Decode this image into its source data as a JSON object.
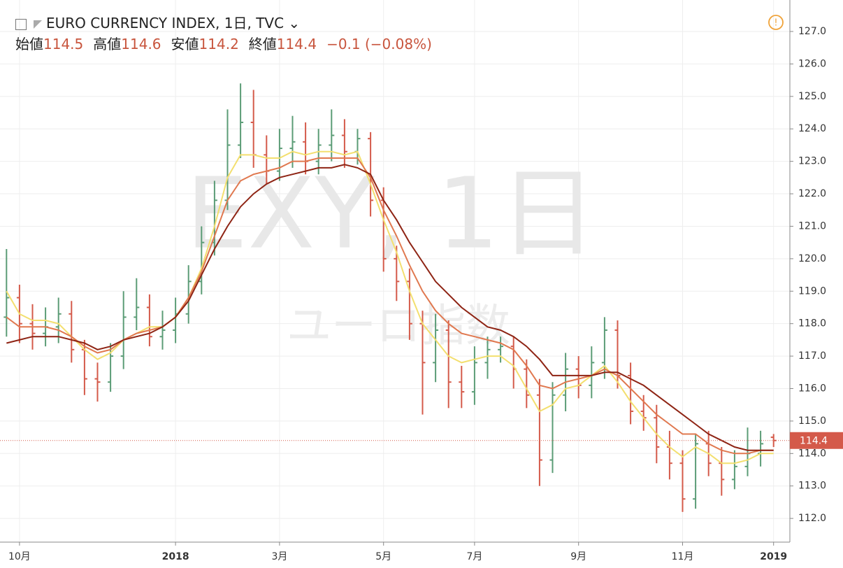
{
  "chart_data": {
    "type": "ohlc",
    "title": "EURO CURRENCY INDEX, 1日, TVC",
    "watermark": "EXY, 1日",
    "watermark_sub": "ユーロ指数",
    "legend_values": [
      {
        "label": "始値",
        "value": 114.5
      },
      {
        "label": "高値",
        "value": 114.6
      },
      {
        "label": "安値",
        "value": 114.2
      },
      {
        "label": "終値",
        "value": 114.4
      }
    ],
    "change": "−0.1 (−0.08%)",
    "categories": [
      null,
      "10月",
      null,
      null,
      null,
      null,
      null,
      null,
      null,
      null,
      null,
      null,
      null,
      "2018",
      null,
      null,
      null,
      null,
      null,
      null,
      null,
      "3月",
      null,
      null,
      null,
      null,
      null,
      null,
      null,
      "5月",
      null,
      null,
      null,
      null,
      null,
      null,
      "7月",
      null,
      null,
      null,
      null,
      null,
      null,
      null,
      "9月",
      null,
      null,
      null,
      null,
      null,
      null,
      null,
      "11月",
      null,
      null,
      null,
      null,
      null,
      null,
      "2019"
    ],
    "up_color": "#5b9c76",
    "down_color": "#d45a4a",
    "ohlc": {
      "open": [
        118.2,
        118.8,
        118.0,
        117.7,
        117.9,
        118.3,
        117.2,
        116.3,
        116.2,
        117.0,
        118.2,
        118.5,
        117.6,
        117.8,
        118.3,
        119.3,
        120.5,
        121.8,
        123.5,
        124.2,
        123.2,
        122.7,
        123.4,
        123.6,
        123.0,
        123.5,
        123.8,
        123.3,
        123.7,
        121.8,
        120.0,
        119.3,
        118.0,
        116.8,
        117.8,
        116.2,
        115.9,
        116.8,
        117.2,
        117.3,
        116.6,
        115.8,
        113.8,
        115.8,
        116.6,
        116.1,
        116.8,
        117.8,
        116.4,
        115.3,
        115.1,
        114.2,
        113.7,
        112.6,
        114.3,
        113.7,
        113.2,
        113.6,
        114.0,
        114.5
      ],
      "high": [
        120.3,
        119.2,
        118.6,
        118.5,
        118.8,
        118.7,
        117.5,
        116.8,
        117.4,
        119.0,
        119.4,
        118.9,
        118.4,
        118.8,
        119.8,
        121.0,
        122.4,
        124.6,
        125.4,
        125.2,
        123.8,
        124.0,
        124.4,
        124.2,
        124.0,
        124.6,
        124.3,
        124.0,
        123.9,
        122.2,
        120.4,
        119.7,
        118.4,
        118.3,
        118.1,
        116.7,
        117.3,
        117.6,
        117.6,
        117.6,
        116.9,
        116.3,
        116.2,
        117.1,
        117.0,
        117.3,
        118.2,
        118.1,
        116.8,
        115.8,
        115.5,
        114.7,
        114.1,
        114.6,
        114.7,
        114.2,
        114.1,
        114.8,
        114.7,
        114.6
      ],
      "low": [
        117.6,
        117.4,
        117.2,
        117.3,
        117.4,
        116.8,
        115.8,
        115.6,
        115.9,
        116.6,
        117.8,
        117.3,
        117.2,
        117.4,
        118.0,
        118.9,
        120.1,
        121.5,
        123.1,
        122.8,
        122.3,
        122.4,
        122.8,
        122.6,
        122.6,
        123.0,
        122.8,
        122.9,
        121.3,
        119.6,
        118.7,
        117.5,
        115.2,
        116.2,
        115.4,
        115.4,
        115.5,
        116.3,
        116.8,
        116.0,
        115.4,
        113.0,
        113.4,
        115.3,
        115.7,
        115.7,
        116.3,
        116.0,
        114.9,
        114.7,
        113.7,
        113.2,
        112.2,
        112.3,
        113.3,
        112.7,
        112.9,
        113.3,
        113.6,
        114.2
      ],
      "close": [
        118.8,
        118.0,
        117.7,
        117.9,
        118.3,
        117.2,
        116.3,
        116.2,
        117.0,
        118.2,
        118.5,
        117.6,
        117.8,
        118.3,
        119.3,
        120.5,
        121.8,
        123.5,
        124.2,
        123.2,
        122.7,
        123.4,
        123.6,
        123.0,
        123.5,
        123.8,
        123.3,
        123.7,
        121.8,
        120.0,
        119.3,
        118.0,
        116.8,
        117.8,
        116.2,
        115.9,
        116.8,
        117.2,
        117.3,
        116.6,
        115.8,
        113.8,
        115.8,
        116.6,
        116.1,
        116.8,
        117.8,
        116.4,
        115.3,
        115.1,
        114.2,
        113.7,
        112.6,
        114.3,
        113.7,
        113.2,
        113.6,
        114.0,
        114.3,
        114.4
      ]
    },
    "ma_series": [
      {
        "color": "#f3df6f",
        "values": [
          119.0,
          118.3,
          118.1,
          118.1,
          118.0,
          117.6,
          117.2,
          116.9,
          117.1,
          117.5,
          117.7,
          117.9,
          117.9,
          118.2,
          118.8,
          119.7,
          121.0,
          122.5,
          123.2,
          123.2,
          123.1,
          123.1,
          123.3,
          123.2,
          123.3,
          123.3,
          123.2,
          123.3,
          122.3,
          121.2,
          120.2,
          119.0,
          118.0,
          117.5,
          117.0,
          116.8,
          116.9,
          117.0,
          117.0,
          116.7,
          116.0,
          115.3,
          115.5,
          116.0,
          116.1,
          116.4,
          116.7,
          116.2,
          115.6,
          115.1,
          114.6,
          114.2,
          113.9,
          114.2,
          114.0,
          113.7,
          113.7,
          113.8,
          114.0,
          114.0
        ]
      },
      {
        "color": "#e0784f",
        "values": [
          118.2,
          117.9,
          117.9,
          117.9,
          117.8,
          117.6,
          117.3,
          117.1,
          117.2,
          117.5,
          117.7,
          117.8,
          117.9,
          118.2,
          118.8,
          119.6,
          120.7,
          121.8,
          122.4,
          122.6,
          122.7,
          122.8,
          123.0,
          123.0,
          123.1,
          123.1,
          123.1,
          123.1,
          122.5,
          121.5,
          120.7,
          119.8,
          119.0,
          118.4,
          118.0,
          117.7,
          117.6,
          117.5,
          117.4,
          117.2,
          116.7,
          116.1,
          116.0,
          116.2,
          116.3,
          116.4,
          116.6,
          116.4,
          116.0,
          115.6,
          115.2,
          114.9,
          114.6,
          114.6,
          114.3,
          114.1,
          114.0,
          114.0,
          114.1,
          114.1
        ]
      },
      {
        "color": "#8e2414",
        "values": [
          117.4,
          117.5,
          117.6,
          117.6,
          117.6,
          117.5,
          117.4,
          117.2,
          117.3,
          117.5,
          117.6,
          117.7,
          117.9,
          118.2,
          118.7,
          119.5,
          120.3,
          121.0,
          121.6,
          122.0,
          122.3,
          122.5,
          122.6,
          122.7,
          122.8,
          122.8,
          122.9,
          122.8,
          122.6,
          121.8,
          121.2,
          120.5,
          119.9,
          119.3,
          118.9,
          118.5,
          118.2,
          117.9,
          117.8,
          117.6,
          117.3,
          116.9,
          116.4,
          116.4,
          116.4,
          116.4,
          116.5,
          116.5,
          116.3,
          116.1,
          115.8,
          115.5,
          115.2,
          114.9,
          114.6,
          114.4,
          114.2,
          114.1,
          114.1,
          114.1
        ]
      }
    ],
    "ylim": [
      111.27,
      127.97
    ],
    "yticks": [
      {
        "value": 112,
        "label": "112.0"
      },
      {
        "value": 113,
        "label": "113.0"
      },
      {
        "value": 114,
        "label": "114.0"
      },
      {
        "value": 115,
        "label": "115.0"
      },
      {
        "value": 116,
        "label": "116.0"
      },
      {
        "value": 117,
        "label": "117.0"
      },
      {
        "value": 118,
        "label": "118.0"
      },
      {
        "value": 119,
        "label": "119.0"
      },
      {
        "value": 120,
        "label": "120.0"
      },
      {
        "value": 121,
        "label": "121.0"
      },
      {
        "value": 122,
        "label": "122.0"
      },
      {
        "value": 123,
        "label": "123.0"
      },
      {
        "value": 124,
        "label": "124.0"
      },
      {
        "value": 125,
        "label": "125.0"
      },
      {
        "value": 126,
        "label": "126.0"
      },
      {
        "value": 127,
        "label": "127.0"
      }
    ],
    "grid": true
  }
}
